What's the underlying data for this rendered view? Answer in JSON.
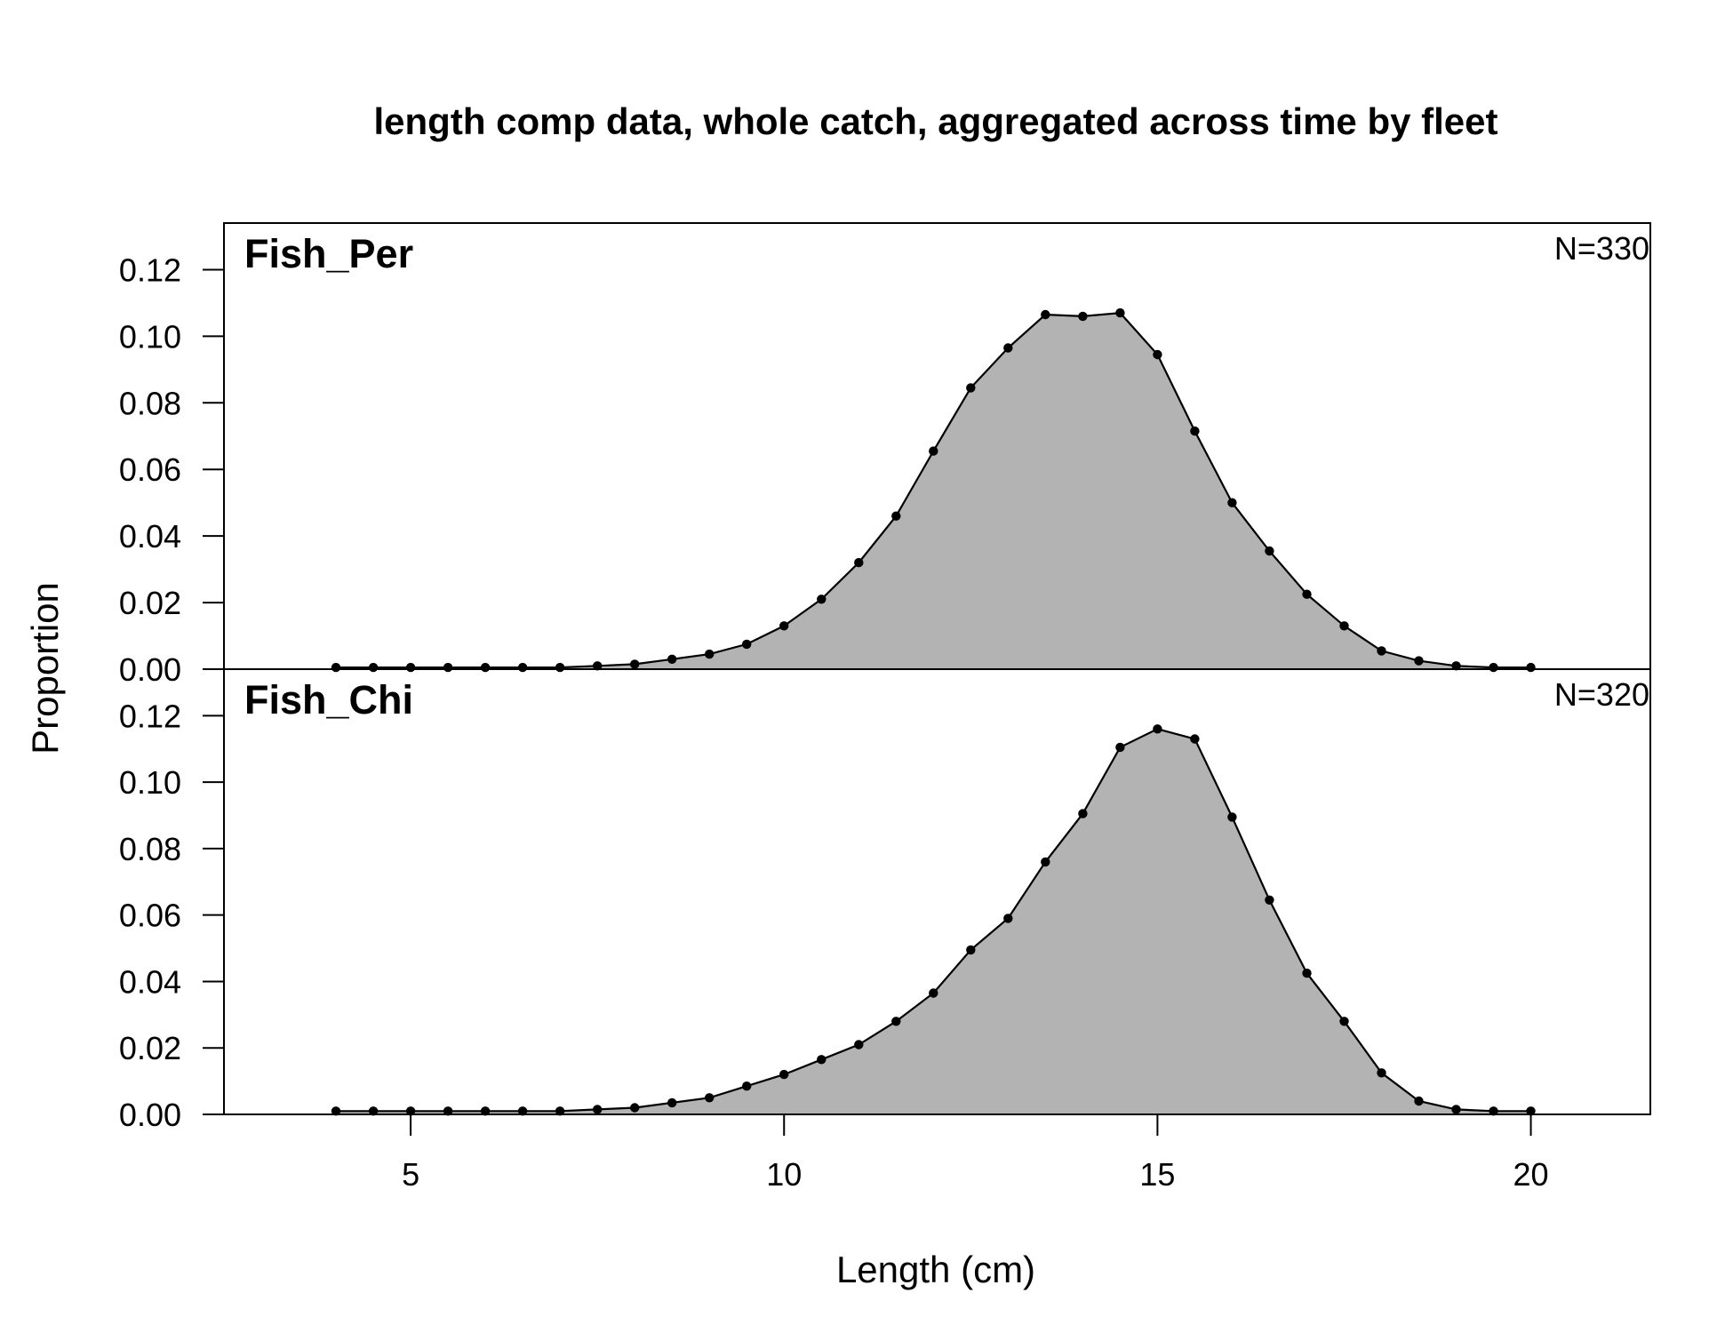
{
  "chart_data": {
    "type": "area",
    "title": "length comp data, whole catch, aggregated across time by fleet",
    "xlabel": "Length (cm)",
    "ylabel": "Proportion",
    "xlim": [
      2.5,
      21.6
    ],
    "ylim": [
      0,
      0.134
    ],
    "x_ticks": [
      "5",
      "10",
      "15",
      "20"
    ],
    "y_ticks": [
      "0.00",
      "0.02",
      "0.04",
      "0.06",
      "0.08",
      "0.10",
      "0.12"
    ],
    "x": [
      4,
      4.5,
      5,
      5.5,
      6,
      6.5,
      7,
      7.5,
      8,
      8.5,
      9,
      9.5,
      10,
      10.5,
      11,
      11.5,
      12,
      12.5,
      13,
      13.5,
      14,
      14.5,
      15,
      15.5,
      16,
      16.5,
      17,
      17.5,
      18,
      18.5,
      19,
      19.5,
      20
    ],
    "fill_color": "#b3b3b3",
    "series": [
      {
        "name": "Fish_Per",
        "n_label": "N=330",
        "values": [
          0.0005,
          0.0005,
          0.0005,
          0.0005,
          0.0005,
          0.0005,
          0.0005,
          0.001,
          0.0015,
          0.003,
          0.0045,
          0.0075,
          0.013,
          0.021,
          0.032,
          0.046,
          0.0655,
          0.0845,
          0.0965,
          0.1065,
          0.106,
          0.107,
          0.0945,
          0.0715,
          0.05,
          0.0355,
          0.0225,
          0.013,
          0.0055,
          0.0025,
          0.001,
          0.0005,
          0.0005
        ]
      },
      {
        "name": "Fish_Chi",
        "n_label": "N=320",
        "values": [
          0.001,
          0.001,
          0.001,
          0.001,
          0.001,
          0.001,
          0.001,
          0.0015,
          0.002,
          0.0035,
          0.005,
          0.0085,
          0.012,
          0.0165,
          0.021,
          0.028,
          0.0365,
          0.0495,
          0.059,
          0.076,
          0.0905,
          0.1105,
          0.116,
          0.113,
          0.0895,
          0.0645,
          0.0425,
          0.028,
          0.0125,
          0.004,
          0.0015,
          0.001,
          0.001
        ]
      }
    ]
  }
}
